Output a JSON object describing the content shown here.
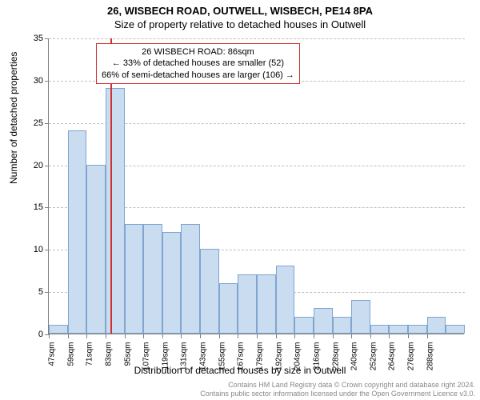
{
  "title_main": "26, WISBECH ROAD, OUTWELL, WISBECH, PE14 8PA",
  "title_sub": "Size of property relative to detached houses in Outwell",
  "chart": {
    "type": "histogram",
    "ylabel": "Number of detached properties",
    "xlabel": "Distribution of detached houses by size in Outwell",
    "ylim": [
      0,
      35
    ],
    "ytick_step": 5,
    "yticks": [
      0,
      5,
      10,
      15,
      20,
      25,
      30,
      35
    ],
    "xticks": [
      "47sqm",
      "59sqm",
      "71sqm",
      "83sqm",
      "95sqm",
      "107sqm",
      "119sqm",
      "131sqm",
      "143sqm",
      "155sqm",
      "167sqm",
      "179sqm",
      "192sqm",
      "204sqm",
      "216sqm",
      "228sqm",
      "240sqm",
      "252sqm",
      "264sqm",
      "276sqm",
      "288sqm"
    ],
    "values": [
      1,
      24,
      20,
      29,
      13,
      13,
      12,
      13,
      10,
      6,
      7,
      7,
      8,
      2,
      3,
      2,
      4,
      1,
      1,
      1,
      2,
      1
    ],
    "bar_fill": "#c9dcf0",
    "bar_border": "#7fa6d0",
    "grid_color": "#c0c0c0",
    "axis_color": "#808080",
    "background_color": "#ffffff",
    "marker_line_color": "#d03030",
    "marker_value": 86,
    "xmin": 47,
    "xmax": 300,
    "label_fontsize": 12,
    "tick_fontsize": 11
  },
  "annotation": {
    "line1": "26 WISBECH ROAD: 86sqm",
    "line2": "← 33% of detached houses are smaller (52)",
    "line3": "66% of semi-detached houses are larger (106) →",
    "border": "#d03030"
  },
  "footer": {
    "line1": "Contains HM Land Registry data © Crown copyright and database right 2024.",
    "line2": "Contains public sector information licensed under the Open Government Licence v3.0."
  }
}
